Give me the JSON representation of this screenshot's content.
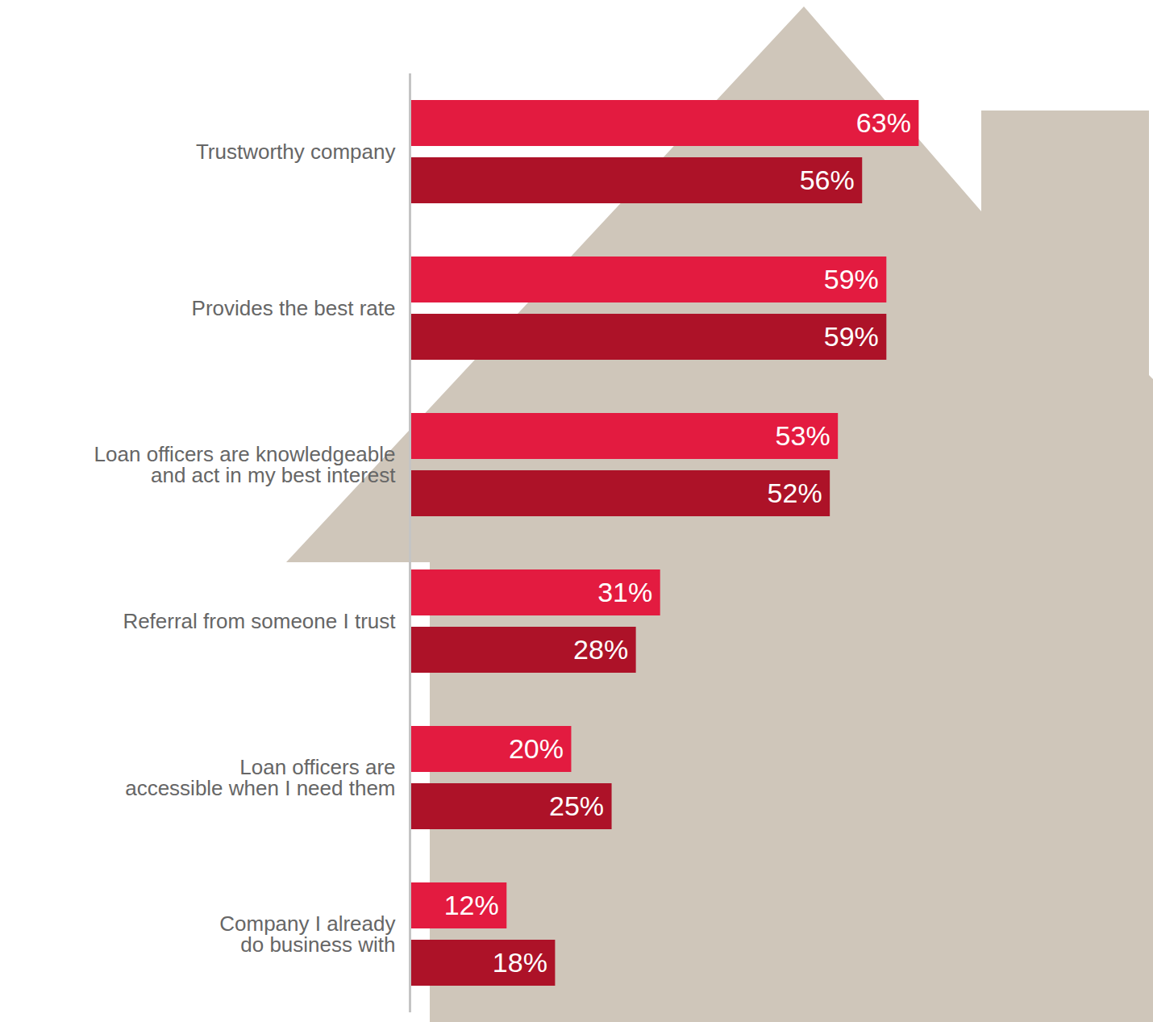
{
  "chart_data": {
    "type": "bar",
    "orientation": "horizontal",
    "categories": [
      "Trustworthy company",
      "Provides the best rate",
      "Loan officers are knowledgeable and act in my best interest",
      "Referral from someone I trust",
      "Loan officers are accessible when I need them",
      "Company I already do business with"
    ],
    "series": [
      {
        "color": "#e31b40",
        "values": [
          63,
          59,
          53,
          31,
          20,
          12
        ],
        "value_labels": [
          "63%",
          "59%",
          "53%",
          "31%",
          "20%",
          "12%"
        ]
      },
      {
        "color": "#ad1228",
        "values": [
          56,
          59,
          52,
          28,
          25,
          18
        ],
        "value_labels": [
          "56%",
          "59%",
          "52%",
          "28%",
          "25%",
          "18%"
        ]
      }
    ],
    "xlim": [
      0,
      90
    ],
    "data_labels": true,
    "tick_labels": "y"
  }
}
